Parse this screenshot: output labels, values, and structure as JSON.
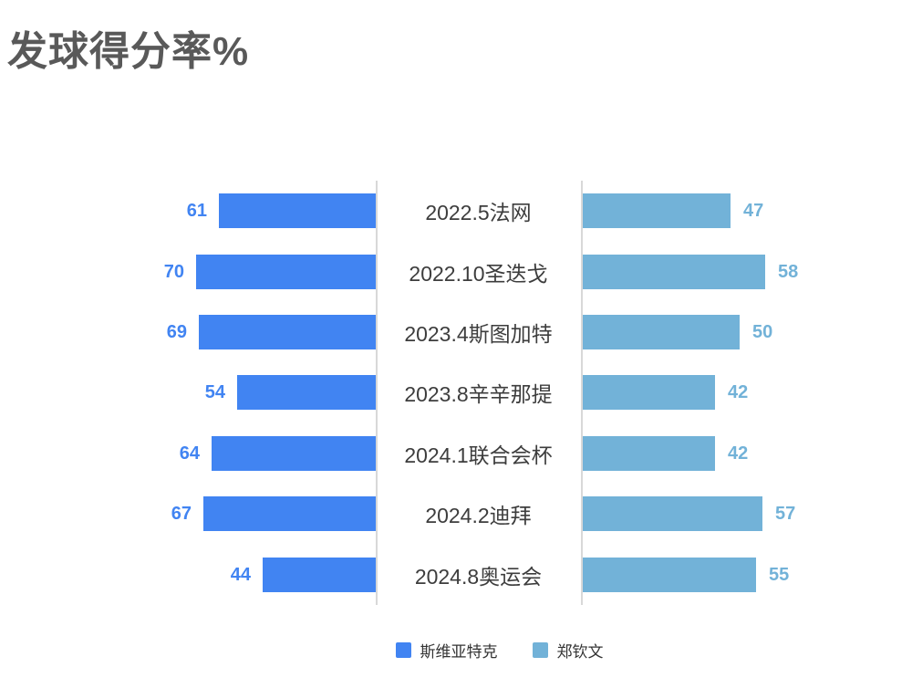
{
  "title": "发球得分率%",
  "chart_data": {
    "type": "bar",
    "variant": "bidirectional-horizontal",
    "title": "发球得分率%",
    "categories": [
      "2022.5法网",
      "2022.10圣迭戈",
      "2023.4斯图加特",
      "2023.8辛辛那提",
      "2024.1联合会杯",
      "2024.2迪拜",
      "2024.8奥运会"
    ],
    "series": [
      {
        "name": "斯维亚特克",
        "side": "left",
        "color": "#4184F2",
        "axis_max": 70,
        "values": [
          61,
          70,
          69,
          54,
          64,
          67,
          44
        ]
      },
      {
        "name": "郑钦文",
        "side": "right",
        "color": "#72B2D8",
        "axis_max": 58,
        "values": [
          47,
          58,
          50,
          42,
          42,
          57,
          55
        ]
      }
    ],
    "value_labels": "outside bar ends",
    "grid": "two vertical axis lines flanking center category column",
    "legend_position": "bottom"
  },
  "legend": {
    "items": [
      {
        "label": "斯维亚特克",
        "color": "#4184F2"
      },
      {
        "label": "郑钦文",
        "color": "#72B2D8"
      }
    ]
  },
  "colors": {
    "background": "#FFFFFF",
    "title": "#595959",
    "category_label": "#3D3D3D",
    "axis_line": "#D8D8D8"
  }
}
